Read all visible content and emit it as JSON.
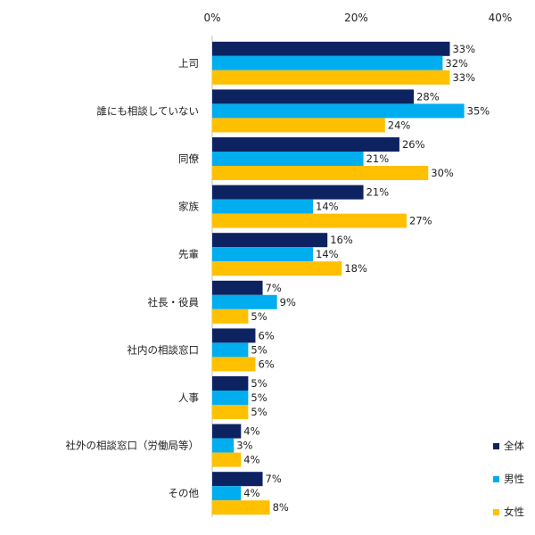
{
  "chart_data": {
    "type": "bar",
    "orientation": "horizontal",
    "title": "",
    "xlabel": "",
    "ylabel": "",
    "xlim": [
      0,
      40
    ],
    "x_ticks": [
      "0%",
      "20%",
      "40%"
    ],
    "x_tick_values": [
      0,
      20,
      40
    ],
    "grid": false,
    "legend_position": "bottom-right",
    "value_suffix": "%",
    "categories": [
      "上司",
      "誰にも相談していない",
      "同僚",
      "家族",
      "先輩",
      "社長・役員",
      "社内の相談窓口",
      "人事",
      "社外の相談窓口（労働局等）",
      "その他"
    ],
    "series": [
      {
        "name": "全体",
        "color": "#0d2260",
        "values": [
          33,
          28,
          26,
          21,
          16,
          7,
          6,
          5,
          4,
          7
        ]
      },
      {
        "name": "男性",
        "color": "#00aeef",
        "values": [
          32,
          35,
          21,
          14,
          14,
          9,
          5,
          5,
          3,
          4
        ]
      },
      {
        "name": "女性",
        "color": "#ffc000",
        "values": [
          33,
          24,
          30,
          27,
          18,
          5,
          6,
          5,
          4,
          8
        ]
      }
    ]
  }
}
